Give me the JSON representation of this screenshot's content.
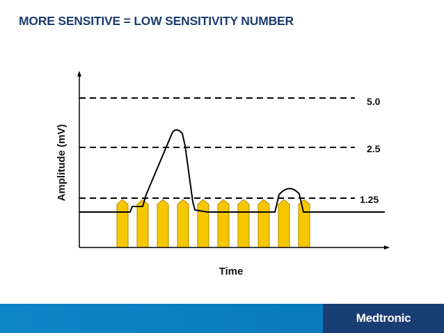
{
  "slide": {
    "title": "MORE SENSITIVE = LOW SENSITIVITY NUMBER"
  },
  "diagram": {
    "y_axis_label": "Amplitude (mV)",
    "x_axis_label": "Time",
    "thresholds": [
      {
        "label": "5.0",
        "value": 5.0
      },
      {
        "label": "2.5",
        "value": 2.5
      },
      {
        "label": "1.25",
        "value": 1.25
      }
    ],
    "noise_marker_count": 10,
    "colors": {
      "marker_fill": "#f6c700",
      "marker_stroke": "#b08a00",
      "line": "#000000"
    }
  },
  "footer": {
    "brand": "Medtronic",
    "colors": {
      "bar": "#0d86c8",
      "brand_block": "#1a3e73"
    }
  }
}
